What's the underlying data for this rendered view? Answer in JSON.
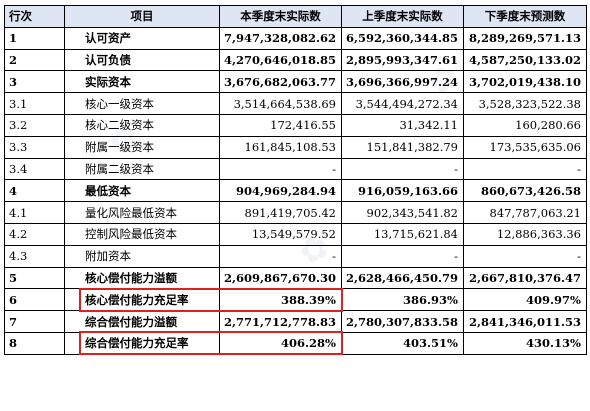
{
  "table": {
    "headers": {
      "row": "行次",
      "item": "项目",
      "current": "本季度末实际数",
      "previous": "上季度末实际数",
      "forecast": "下季度末预测数"
    },
    "rows": [
      {
        "row": "1",
        "item": "认可资产",
        "current": "7,947,328,082.62",
        "previous": "6,592,360,344.85",
        "forecast": "8,289,269,571.13",
        "bold": true
      },
      {
        "row": "2",
        "item": "认可负债",
        "current": "4,270,646,018.85",
        "previous": "2,895,993,347.61",
        "forecast": "4,587,250,133.02",
        "bold": true
      },
      {
        "row": "3",
        "item": "实际资本",
        "current": "3,676,682,063.77",
        "previous": "3,696,366,997.24",
        "forecast": "3,702,019,438.10",
        "bold": true
      },
      {
        "row": "3.1",
        "item": "核心一级资本",
        "current": "3,514,664,538.69",
        "previous": "3,544,494,272.34",
        "forecast": "3,528,323,522.38",
        "bold": false
      },
      {
        "row": "3.2",
        "item": "核心二级资本",
        "current": "172,416.55",
        "previous": "31,342.11",
        "forecast": "160,280.66",
        "bold": false
      },
      {
        "row": "3.3",
        "item": "附属一级资本",
        "current": "161,845,108.53",
        "previous": "151,841,382.79",
        "forecast": "173,535,635.06",
        "bold": false
      },
      {
        "row": "3.4",
        "item": "附属二级资本",
        "current": "-",
        "previous": "-",
        "forecast": "-",
        "bold": false
      },
      {
        "row": "4",
        "item": "最低资本",
        "current": "904,969,284.94",
        "previous": "916,059,163.66",
        "forecast": "860,673,426.58",
        "bold": true
      },
      {
        "row": "4.1",
        "item": "量化风险最低资本",
        "current": "891,419,705.42",
        "previous": "902,343,541.82",
        "forecast": "847,787,063.21",
        "bold": false
      },
      {
        "row": "4.2",
        "item": "控制风险最低资本",
        "current": "13,549,579.52",
        "previous": "13,715,621.84",
        "forecast": "12,886,363.36",
        "bold": false
      },
      {
        "row": "4.3",
        "item": "附加资本",
        "current": "-",
        "previous": "-",
        "forecast": "-",
        "bold": false
      },
      {
        "row": "5",
        "item": "核心偿付能力溢额",
        "current": "2,609,867,670.30",
        "previous": "2,628,466,450.79",
        "forecast": "2,667,810,376.47",
        "bold": true
      },
      {
        "row": "6",
        "item": "核心偿付能力充足率",
        "current": "388.39%",
        "previous": "386.93%",
        "forecast": "409.97%",
        "bold": true
      },
      {
        "row": "7",
        "item": "综合偿付能力溢额",
        "current": "2,771,712,778.83",
        "previous": "2,780,307,833.58",
        "forecast": "2,841,346,011.53",
        "bold": true
      },
      {
        "row": "8",
        "item": "综合偿付能力充足率",
        "current": "406.28%",
        "previous": "403.51%",
        "forecast": "430.13%",
        "bold": true
      }
    ]
  },
  "highlights": {
    "color": "#e02020",
    "rows": [
      "6",
      "8"
    ]
  }
}
